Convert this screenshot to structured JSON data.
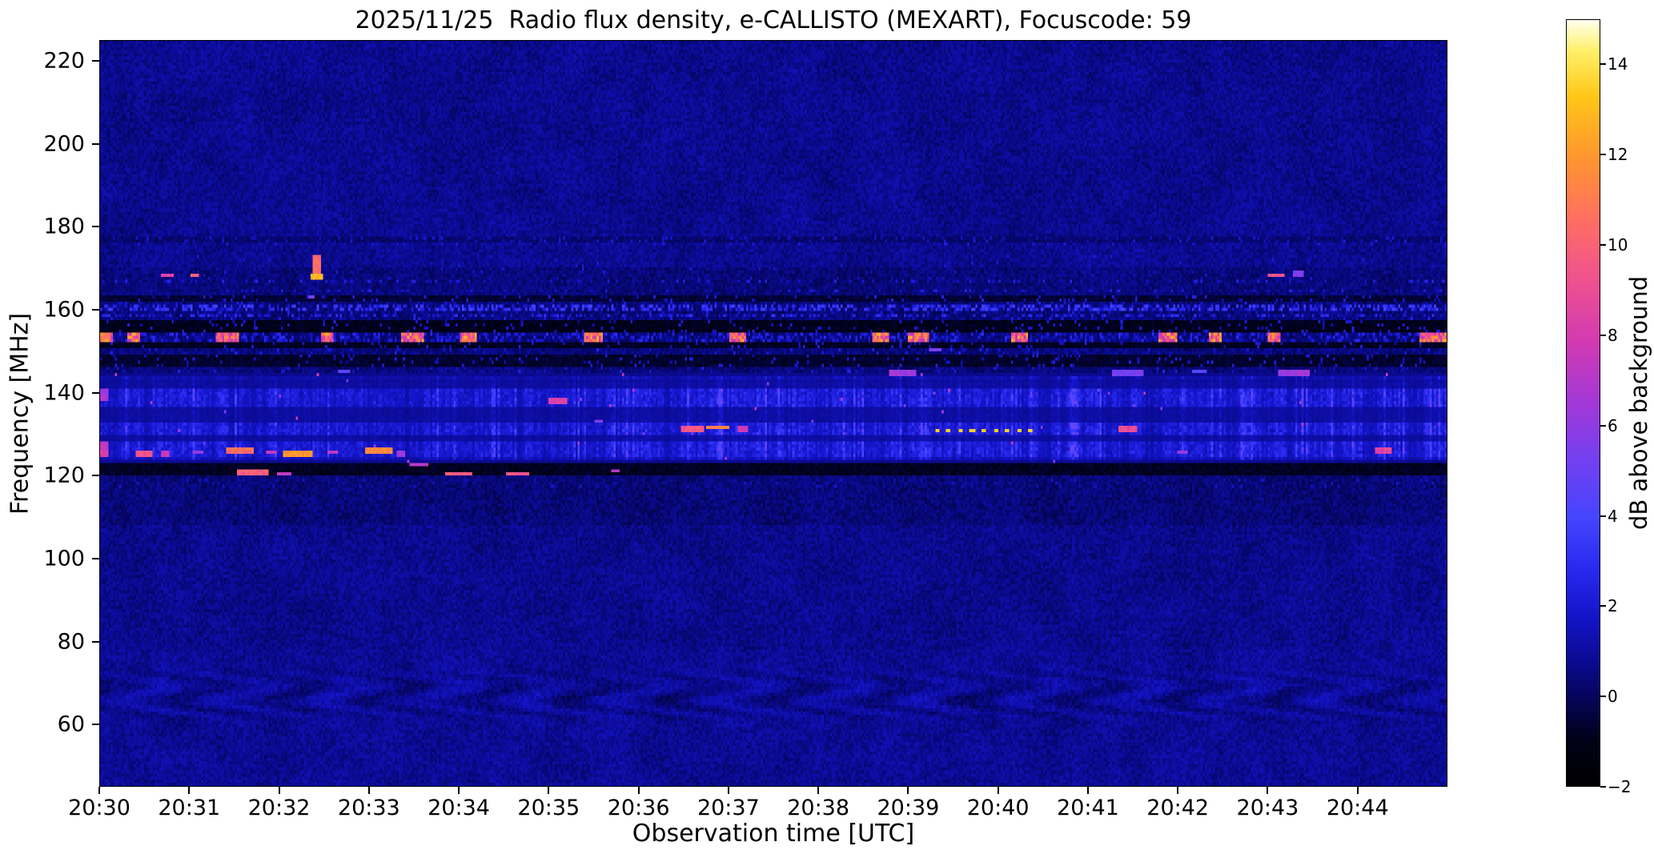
{
  "chart_data": {
    "type": "heatmap",
    "title": "2025/11/25  Radio flux density, e-CALLISTO (MEXART), Focuscode: 59",
    "xlabel": "Observation time [UTC]",
    "ylabel": "Frequency [MHz]",
    "x_axis": {
      "tick_labels": [
        "20:30",
        "20:31",
        "20:32",
        "20:33",
        "20:34",
        "20:35",
        "20:36",
        "20:37",
        "20:38",
        "20:39",
        "20:40",
        "20:41",
        "20:42",
        "20:43",
        "20:44"
      ],
      "tick_interval_minutes": 1,
      "span_minutes": 15
    },
    "y_axis": {
      "range_mhz": [
        45,
        225
      ],
      "tick_values_mhz": [
        60,
        80,
        100,
        120,
        140,
        160,
        180,
        200,
        220
      ]
    },
    "colorbar": {
      "label": "dB above background",
      "range_db": [
        -2,
        15
      ],
      "ticks": [
        {
          "value": -2,
          "label": "−2"
        },
        {
          "value": 0,
          "label": "0"
        },
        {
          "value": 2,
          "label": "2"
        },
        {
          "value": 4,
          "label": "4"
        },
        {
          "value": 6,
          "label": "6"
        },
        {
          "value": 8,
          "label": "8"
        },
        {
          "value": 10,
          "label": "10"
        },
        {
          "value": 12,
          "label": "12"
        },
        {
          "value": 14,
          "label": "14"
        }
      ],
      "colormap_stops": [
        {
          "t": 0.0,
          "color": "#000000"
        },
        {
          "t": 0.06,
          "color": "#010118"
        },
        {
          "t": 0.12,
          "color": "#050560"
        },
        {
          "t": 0.16,
          "color": "#0a0a90"
        },
        {
          "t": 0.22,
          "color": "#1414c8"
        },
        {
          "t": 0.28,
          "color": "#2828ee"
        },
        {
          "t": 0.35,
          "color": "#4545ff"
        },
        {
          "t": 0.42,
          "color": "#7040f2"
        },
        {
          "t": 0.5,
          "color": "#a238d8"
        },
        {
          "t": 0.58,
          "color": "#d23ab2"
        },
        {
          "t": 0.66,
          "color": "#ef5190"
        },
        {
          "t": 0.74,
          "color": "#ff6f62"
        },
        {
          "t": 0.82,
          "color": "#ff9530"
        },
        {
          "t": 0.9,
          "color": "#ffc718"
        },
        {
          "t": 0.96,
          "color": "#fff06a"
        },
        {
          "t": 1.0,
          "color": "#ffffee"
        }
      ]
    },
    "noise_floor_db": {
      "mean": 0.7,
      "sd": 0.5
    },
    "features": [
      {
        "type": "wavy_texture",
        "name": "low-band-ripples",
        "f_range": [
          58,
          75
        ],
        "amplitude_db": 0.5,
        "time_cycles_per_min": 0.9
      },
      {
        "type": "dark_lane",
        "f_range": [
          120.2,
          123.2
        ],
        "db": -1.2
      },
      {
        "type": "dark_lane",
        "f_range": [
          127.9,
          129.9
        ],
        "db": -1.0
      },
      {
        "type": "dark_lane",
        "f_range": [
          133.0,
          136.4
        ],
        "db": -1.3
      },
      {
        "type": "dark_lane",
        "f_range": [
          140.8,
          143.4
        ],
        "db": -1.1
      },
      {
        "type": "dark_lane",
        "f_range": [
          146.4,
          149.2
        ],
        "db": -1.0
      },
      {
        "type": "dark_lane",
        "f_range": [
          150.8,
          152.6
        ],
        "db": -1.2
      },
      {
        "type": "dark_lane",
        "f_range": [
          154.5,
          157.4
        ],
        "db": -1.3
      },
      {
        "type": "dark_lane",
        "f_range": [
          161.8,
          163.6
        ],
        "db": -0.9
      },
      {
        "type": "dark_lane",
        "f_range": [
          176.4,
          177.8
        ],
        "db": -0.1
      },
      {
        "type": "striation_band",
        "name": "vertical-striation-band",
        "f_range": [
          123.2,
          144.5
        ],
        "db_range": [
          0.6,
          4.2
        ],
        "time_envelope": [
          [
            0,
            1.1
          ],
          [
            1.5,
            0.95
          ],
          [
            3,
            0.85
          ],
          [
            5,
            0.95
          ],
          [
            6.5,
            1.1
          ],
          [
            8,
            1.15
          ],
          [
            9.5,
            1.1
          ],
          [
            11,
            0.95
          ],
          [
            12.5,
            0.9
          ],
          [
            13.5,
            1.1
          ],
          [
            15,
            1.2
          ]
        ]
      },
      {
        "type": "speckle_row",
        "f_range": [
          157.9,
          159.3
        ],
        "density": 0.3,
        "db_range": [
          1.5,
          3.4
        ]
      },
      {
        "type": "speckle_row",
        "f_range": [
          159.9,
          161.5
        ],
        "density": 0.5,
        "db_range": [
          1.8,
          4.0
        ]
      },
      {
        "type": "speckle_row",
        "f_range": [
          145.0,
          163.5
        ],
        "density": 0.07,
        "db_range": [
          1.0,
          2.6
        ]
      },
      {
        "type": "speckle_row",
        "f_range": [
          164.0,
          165.2
        ],
        "density": 0.12,
        "db_range": [
          1.2,
          2.6
        ]
      },
      {
        "type": "speckle_row",
        "f_range": [
          166.3,
          167.4
        ],
        "density": 0.15,
        "db_range": [
          1.2,
          2.8
        ]
      },
      {
        "type": "speckle_row",
        "f_range": [
          167.5,
          173.0
        ],
        "density": 0.02,
        "db_range": [
          1.0,
          2.2
        ]
      },
      {
        "type": "speckle_row",
        "f_range": [
          175.5,
          177.5
        ],
        "density": 0.1,
        "db_range": [
          0.9,
          2.2
        ]
      },
      {
        "type": "speckle_row",
        "f_range": [
          117.3,
          119.6
        ],
        "density": 0.07,
        "db_range": [
          0.8,
          2.0
        ]
      },
      {
        "type": "rfi_line",
        "name": "carrier-153.5-mhz",
        "f_mhz": 153.5,
        "half_width_mhz": 0.9,
        "db_range": [
          7,
          13
        ],
        "segments_min": [
          [
            0.0,
            0.14
          ],
          [
            0.3,
            0.44
          ],
          [
            1.3,
            1.54
          ],
          [
            2.46,
            2.6
          ],
          [
            3.36,
            3.62
          ],
          [
            4.0,
            4.2
          ],
          [
            5.38,
            5.6
          ],
          [
            7.0,
            7.2
          ],
          [
            8.6,
            8.8
          ],
          [
            9.0,
            9.24
          ],
          [
            10.14,
            10.34
          ],
          [
            11.78,
            12.0
          ],
          [
            12.34,
            12.5
          ],
          [
            13.0,
            13.16
          ],
          [
            14.7,
            15.0
          ]
        ]
      },
      {
        "type": "dotted_segment",
        "name": "dotted-line-131-mhz",
        "f_mhz": 131.0,
        "t_range": [
          9.3,
          10.45
        ],
        "spacing_min": 0.13,
        "dot_width_min": 0.05,
        "h_mhz": 0.9,
        "db": 13.5
      },
      {
        "type": "blob",
        "t_min": 0.05,
        "f_mhz": 153.5,
        "w_min": 0.12,
        "h_mhz": 1.8,
        "db": 11
      },
      {
        "type": "blob",
        "t_min": 0.05,
        "f_mhz": 139.5,
        "w_min": 0.1,
        "h_mhz": 2.6,
        "db": 7
      },
      {
        "type": "blob",
        "t_min": 0.05,
        "f_mhz": 127.0,
        "w_min": 0.1,
        "h_mhz": 2.0,
        "db": 8
      },
      {
        "type": "blob",
        "t_min": 0.05,
        "f_mhz": 125.0,
        "w_min": 0.1,
        "h_mhz": 1.6,
        "db": 9
      },
      {
        "type": "blob",
        "t_min": 0.75,
        "f_mhz": 168.3,
        "w_min": 0.12,
        "h_mhz": 1.2,
        "db": 9
      },
      {
        "type": "blob",
        "t_min": 1.05,
        "f_mhz": 168.6,
        "w_min": 0.08,
        "h_mhz": 1.0,
        "db": 11
      },
      {
        "type": "blob",
        "t_min": 2.42,
        "f_mhz": 170.0,
        "w_min": 0.09,
        "h_mhz": 6.0,
        "db": 11
      },
      {
        "type": "blob",
        "t_min": 2.42,
        "f_mhz": 168.2,
        "w_min": 0.14,
        "h_mhz": 1.6,
        "db": 13.5
      },
      {
        "type": "blob",
        "t_min": 2.35,
        "f_mhz": 163.2,
        "w_min": 0.08,
        "h_mhz": 1.0,
        "db": 6
      },
      {
        "type": "blob",
        "t_min": 0.5,
        "f_mhz": 125.3,
        "w_min": 0.18,
        "h_mhz": 1.2,
        "db": 10
      },
      {
        "type": "blob",
        "t_min": 0.72,
        "f_mhz": 125.3,
        "w_min": 0.1,
        "h_mhz": 1.0,
        "db": 8
      },
      {
        "type": "blob",
        "t_min": 1.1,
        "f_mhz": 125.8,
        "w_min": 0.12,
        "h_mhz": 1.0,
        "db": 7
      },
      {
        "type": "blob",
        "t_min": 1.55,
        "f_mhz": 125.9,
        "w_min": 0.3,
        "h_mhz": 1.2,
        "db": 11
      },
      {
        "type": "blob",
        "t_min": 1.9,
        "f_mhz": 125.4,
        "w_min": 0.12,
        "h_mhz": 1.0,
        "db": 8
      },
      {
        "type": "blob",
        "t_min": 2.2,
        "f_mhz": 125.5,
        "w_min": 0.34,
        "h_mhz": 1.3,
        "db": 12.5
      },
      {
        "type": "blob",
        "t_min": 2.6,
        "f_mhz": 125.8,
        "w_min": 0.12,
        "h_mhz": 1.0,
        "db": 8
      },
      {
        "type": "blob",
        "t_min": 3.1,
        "f_mhz": 126.0,
        "w_min": 0.3,
        "h_mhz": 1.3,
        "db": 12
      },
      {
        "type": "blob",
        "t_min": 3.35,
        "f_mhz": 125.2,
        "w_min": 0.1,
        "h_mhz": 1.0,
        "db": 7
      },
      {
        "type": "blob",
        "t_min": 1.7,
        "f_mhz": 120.6,
        "w_min": 0.35,
        "h_mhz": 1.2,
        "db": 10.5
      },
      {
        "type": "blob",
        "t_min": 2.05,
        "f_mhz": 120.6,
        "w_min": 0.15,
        "h_mhz": 1.0,
        "db": 8
      },
      {
        "type": "blob",
        "t_min": 3.55,
        "f_mhz": 122.8,
        "w_min": 0.2,
        "h_mhz": 1.0,
        "db": 8
      },
      {
        "type": "blob",
        "t_min": 4.0,
        "f_mhz": 120.5,
        "w_min": 0.3,
        "h_mhz": 1.2,
        "db": 10.5
      },
      {
        "type": "blob",
        "t_min": 4.65,
        "f_mhz": 120.5,
        "w_min": 0.25,
        "h_mhz": 1.2,
        "db": 10
      },
      {
        "type": "blob",
        "t_min": 5.75,
        "f_mhz": 121.0,
        "w_min": 0.1,
        "h_mhz": 1.0,
        "db": 7.5
      },
      {
        "type": "blob",
        "t_min": 5.1,
        "f_mhz": 137.8,
        "w_min": 0.2,
        "h_mhz": 1.2,
        "db": 9
      },
      {
        "type": "blob",
        "t_min": 5.55,
        "f_mhz": 133.3,
        "w_min": 0.1,
        "h_mhz": 1.0,
        "db": 6
      },
      {
        "type": "blob",
        "t_min": 6.6,
        "f_mhz": 131.3,
        "w_min": 0.25,
        "h_mhz": 1.2,
        "db": 10
      },
      {
        "type": "blob",
        "t_min": 6.88,
        "f_mhz": 131.5,
        "w_min": 0.25,
        "h_mhz": 1.2,
        "db": 12
      },
      {
        "type": "blob",
        "t_min": 7.15,
        "f_mhz": 131.2,
        "w_min": 0.12,
        "h_mhz": 1.0,
        "db": 8
      },
      {
        "type": "blob",
        "t_min": 11.45,
        "f_mhz": 131.4,
        "w_min": 0.2,
        "h_mhz": 1.1,
        "db": 9.5
      },
      {
        "type": "blob",
        "t_min": 2.72,
        "f_mhz": 145.0,
        "w_min": 0.12,
        "h_mhz": 1.0,
        "db": 5
      },
      {
        "type": "blob",
        "t_min": 8.95,
        "f_mhz": 144.9,
        "w_min": 0.3,
        "h_mhz": 1.2,
        "db": 7
      },
      {
        "type": "blob",
        "t_min": 9.3,
        "f_mhz": 150.2,
        "w_min": 0.15,
        "h_mhz": 1.0,
        "db": 6
      },
      {
        "type": "blob",
        "t_min": 11.45,
        "f_mhz": 144.8,
        "w_min": 0.35,
        "h_mhz": 1.3,
        "db": 6
      },
      {
        "type": "blob",
        "t_min": 12.25,
        "f_mhz": 145.0,
        "w_min": 0.15,
        "h_mhz": 1.0,
        "db": 5
      },
      {
        "type": "blob",
        "t_min": 13.3,
        "f_mhz": 144.9,
        "w_min": 0.35,
        "h_mhz": 1.2,
        "db": 7
      },
      {
        "type": "blob",
        "t_min": 13.1,
        "f_mhz": 168.4,
        "w_min": 0.18,
        "h_mhz": 1.1,
        "db": 10
      },
      {
        "type": "blob",
        "t_min": 13.35,
        "f_mhz": 168.8,
        "w_min": 0.1,
        "h_mhz": 0.9,
        "db": 6
      },
      {
        "type": "blob",
        "t_min": 12.05,
        "f_mhz": 125.6,
        "w_min": 0.12,
        "h_mhz": 1.0,
        "db": 7
      },
      {
        "type": "blob",
        "t_min": 14.3,
        "f_mhz": 126.0,
        "w_min": 0.2,
        "h_mhz": 1.1,
        "db": 9
      }
    ]
  }
}
